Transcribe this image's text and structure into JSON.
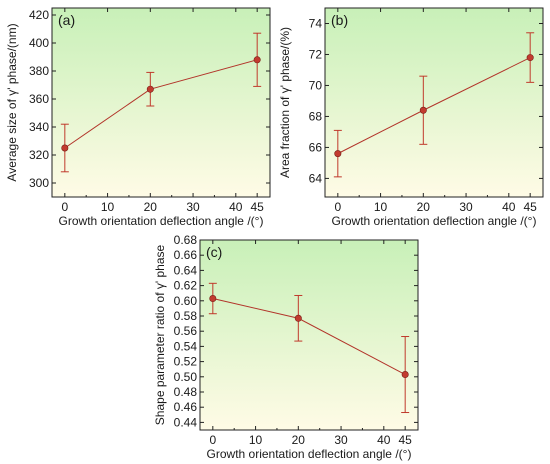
{
  "colors": {
    "series": "#b2342a",
    "marker_fill": "#c23b2f",
    "errorbar": "#c0392b",
    "axis": "#222222",
    "bg_top": "#c8f0b8",
    "bg_bottom": "#fffbe6"
  },
  "chart_data": [
    {
      "type": "line",
      "panel_label": "(a)",
      "xlabel": "Growth orientation deflection angle /(°)",
      "ylabel": "Average size of γ' phase/(nm)",
      "xlim": [
        -3,
        48
      ],
      "ylim": [
        290,
        425
      ],
      "xticks": [
        0,
        10,
        20,
        30,
        40,
        45
      ],
      "yticks": [
        300,
        320,
        340,
        360,
        380,
        400,
        420
      ],
      "tick_labels_y": [
        "300",
        "320",
        "340",
        "360",
        "380",
        "400",
        "420"
      ],
      "tick_labels_x": [
        "0",
        "10",
        "20",
        "30",
        "40",
        "45"
      ],
      "x": [
        0,
        20,
        45
      ],
      "y": [
        325,
        367,
        388
      ],
      "err": [
        17,
        12,
        19
      ]
    },
    {
      "type": "line",
      "panel_label": "(b)",
      "xlabel": "Growth orientation deflection angle /(°)",
      "ylabel": "Area fraction of γ' phase/(%)",
      "xlim": [
        -3,
        48
      ],
      "ylim": [
        62.8,
        75
      ],
      "xticks": [
        0,
        10,
        20,
        30,
        40,
        45
      ],
      "yticks": [
        64,
        66,
        68,
        70,
        72,
        74
      ],
      "tick_labels_y": [
        "64",
        "66",
        "68",
        "70",
        "72",
        "74"
      ],
      "tick_labels_x": [
        "0",
        "10",
        "20",
        "30",
        "40",
        "45"
      ],
      "x": [
        0,
        20,
        45
      ],
      "y": [
        65.6,
        68.4,
        71.8
      ],
      "err": [
        1.5,
        2.2,
        1.6
      ]
    },
    {
      "type": "line",
      "panel_label": "(c)",
      "xlabel": "Growth orientation deflection angle /(°)",
      "ylabel": "Shape parameter ratio of γ' phase",
      "xlim": [
        -3,
        48
      ],
      "ylim": [
        0.43,
        0.68
      ],
      "xticks": [
        0,
        10,
        20,
        30,
        40,
        45
      ],
      "yticks": [
        0.44,
        0.46,
        0.48,
        0.5,
        0.52,
        0.54,
        0.56,
        0.58,
        0.6,
        0.62,
        0.64,
        0.66,
        0.68
      ],
      "tick_labels_y": [
        "0.44",
        "0.46",
        "0.48",
        "0.50",
        "0.52",
        "0.54",
        "0.56",
        "0.58",
        "0.60",
        "0.62",
        "0.64",
        "0.66",
        "0.68"
      ],
      "tick_labels_x": [
        "0",
        "10",
        "20",
        "30",
        "40",
        "45"
      ],
      "x": [
        0,
        20,
        45
      ],
      "y": [
        0.603,
        0.577,
        0.503
      ],
      "err": [
        0.02,
        0.03,
        0.05
      ]
    }
  ]
}
